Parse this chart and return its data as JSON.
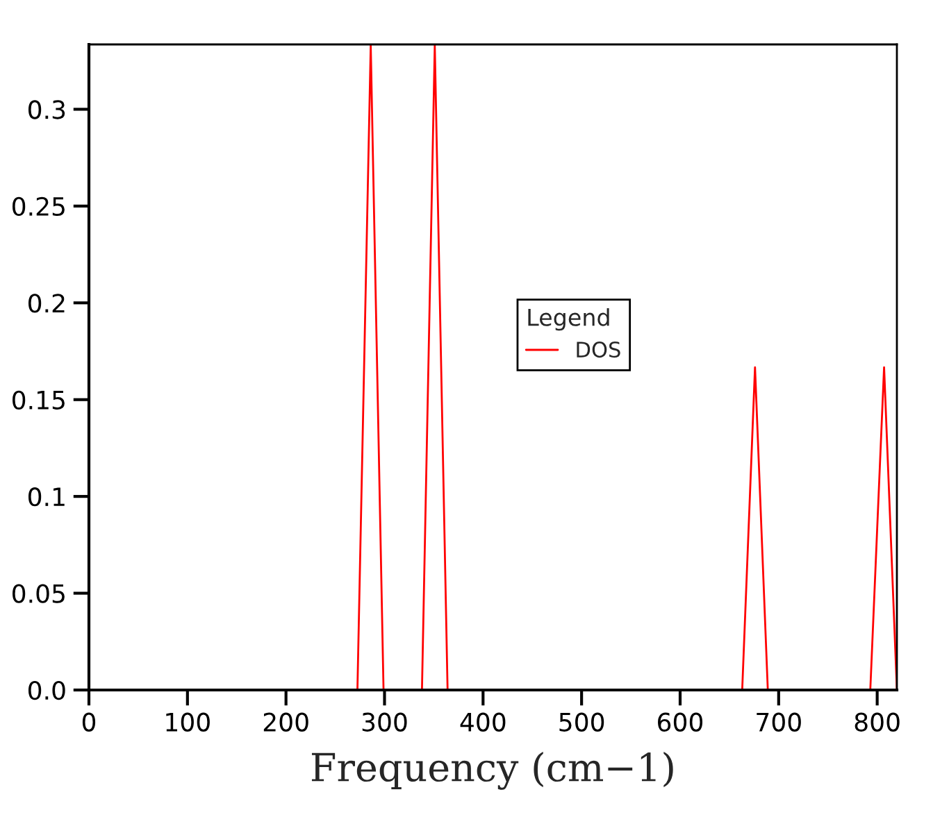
{
  "chart_data": {
    "type": "line",
    "xlabel": "Frequency (cm−1)",
    "legend_title": "Legend",
    "series": [
      {
        "name": "DOS",
        "color": "#ff0000",
        "x": [
          272.5,
          286,
          299,
          338,
          351,
          364,
          663,
          676,
          689,
          793,
          807,
          820
        ],
        "values": [
          0,
          0.333,
          0,
          0,
          0.333,
          0,
          0,
          0.1667,
          0,
          0,
          0.1667,
          0
        ]
      }
    ],
    "xlim": [
      0,
      820
    ],
    "ylim": [
      0,
      0.3335
    ],
    "xticks": [
      0,
      100,
      200,
      300,
      400,
      500,
      600,
      700,
      800
    ],
    "yticks": [
      {
        "value": 0,
        "label": "0.0"
      },
      0.05,
      0.1,
      0.15,
      0.2,
      0.25,
      0.3
    ],
    "grid": false,
    "legend": "center",
    "marker": "none",
    "line_style": "solid"
  }
}
